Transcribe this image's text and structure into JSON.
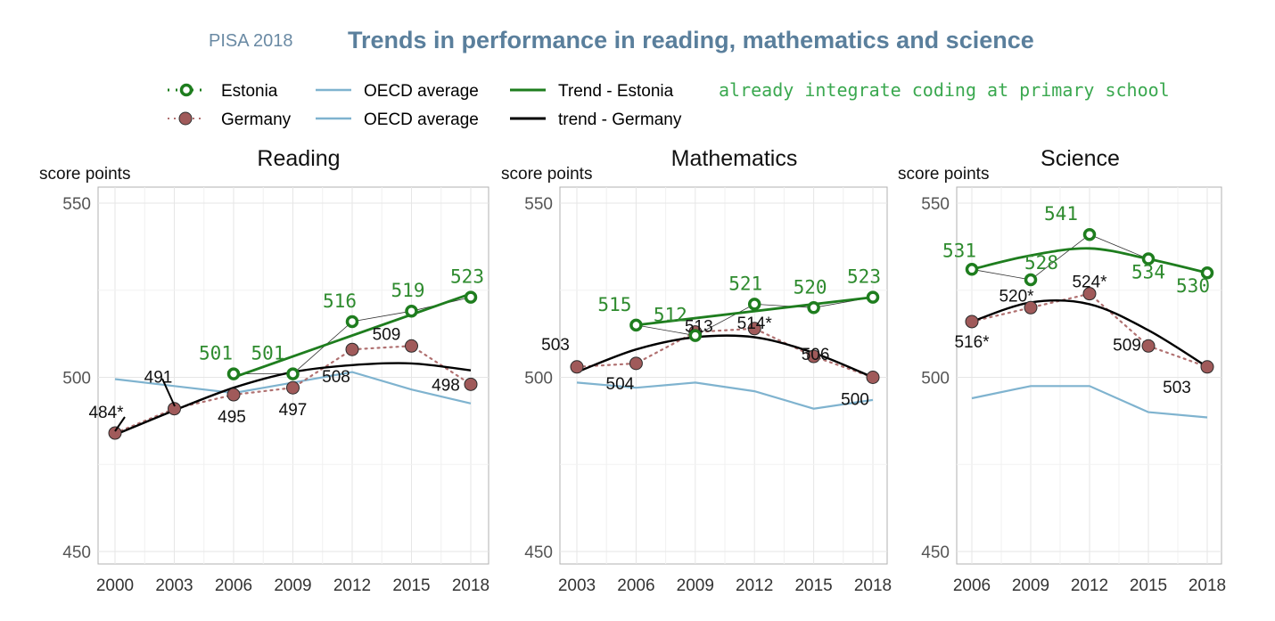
{
  "header": {
    "prefix": "PISA 2018",
    "title": "Trends in performance in reading, mathematics and science"
  },
  "legend": {
    "estonia": "Estonia",
    "germany": "Germany",
    "oecd_1": "OECD average",
    "oecd_2": "OECD average",
    "trend_estonia": "Trend - Estonia",
    "trend_germany": "trend - Germany",
    "note": "already integrate coding at primary school"
  },
  "colors": {
    "estonia": "#1e7d1e",
    "estonia_label": "#2e8b2e",
    "germany_fill": "#a05a5a",
    "germany_dots": "#b07070",
    "oecd": "#7fb3cf",
    "trend_germany": "#000000",
    "grid": "#e6e6e6",
    "axis_text": "#555555",
    "header_prefix": "#6a8aa4",
    "header_title": "#5a7f9c",
    "note": "#3aa84f"
  },
  "chart_data": [
    {
      "type": "line",
      "title": "Reading",
      "ylabel": "score points",
      "ylim": [
        450,
        550
      ],
      "yticks": [
        450,
        500,
        550
      ],
      "x": [
        2000,
        2003,
        2006,
        2009,
        2012,
        2015,
        2018
      ],
      "series": [
        {
          "name": "Estonia",
          "x": [
            2006,
            2009,
            2012,
            2015,
            2018
          ],
          "values": [
            501,
            501,
            516,
            519,
            523
          ],
          "labels": [
            "501",
            "501",
            "516",
            "519",
            "523"
          ]
        },
        {
          "name": "Germany",
          "x": [
            2000,
            2003,
            2006,
            2009,
            2012,
            2015,
            2018
          ],
          "values": [
            484,
            491,
            495,
            497,
            508,
            509,
            498
          ],
          "labels": [
            "484*",
            "491",
            "495",
            "497",
            "508",
            "509",
            "498"
          ]
        },
        {
          "name": "OECD average",
          "x": [
            2000,
            2003,
            2006,
            2009,
            2012,
            2015,
            2018
          ],
          "values": [
            499.5,
            497.5,
            495.5,
            498.5,
            501.5,
            496.5,
            492.5
          ]
        },
        {
          "name": "Trend - Estonia",
          "x": [
            2006,
            2018
          ],
          "values": [
            500,
            524
          ]
        },
        {
          "name": "trend - Germany",
          "x": [
            2000,
            2003,
            2006,
            2009,
            2012,
            2015,
            2018
          ],
          "values": [
            483.5,
            490.5,
            497,
            501.5,
            503.5,
            504,
            502
          ]
        }
      ]
    },
    {
      "type": "line",
      "title": "Mathematics",
      "ylabel": "score points",
      "ylim": [
        450,
        550
      ],
      "yticks": [
        450,
        500,
        550
      ],
      "x": [
        2003,
        2006,
        2009,
        2012,
        2015,
        2018
      ],
      "series": [
        {
          "name": "Estonia",
          "x": [
            2006,
            2009,
            2012,
            2015,
            2018
          ],
          "values": [
            515,
            512,
            521,
            520,
            523
          ],
          "labels": [
            "515",
            "512",
            "521",
            "520",
            "523"
          ]
        },
        {
          "name": "Germany",
          "x": [
            2003,
            2006,
            2009,
            2012,
            2015,
            2018
          ],
          "values": [
            503,
            504,
            513,
            514,
            506,
            500
          ],
          "labels": [
            "503",
            "504",
            "513",
            "514*",
            "506",
            "500"
          ]
        },
        {
          "name": "OECD average",
          "x": [
            2003,
            2006,
            2009,
            2012,
            2015,
            2018
          ],
          "values": [
            498.5,
            497,
            498.5,
            496,
            491,
            493.5
          ]
        },
        {
          "name": "Trend - Estonia",
          "x": [
            2006,
            2018
          ],
          "values": [
            515,
            523
          ]
        },
        {
          "name": "trend - Germany",
          "x": [
            2003,
            2006,
            2009,
            2012,
            2015,
            2018
          ],
          "values": [
            501.5,
            508,
            511.5,
            511.5,
            507,
            500
          ]
        }
      ]
    },
    {
      "type": "line",
      "title": "Science",
      "ylabel": "score points",
      "ylim": [
        450,
        550
      ],
      "yticks": [
        450,
        500,
        550
      ],
      "x": [
        2006,
        2009,
        2012,
        2015,
        2018
      ],
      "series": [
        {
          "name": "Estonia",
          "x": [
            2006,
            2009,
            2012,
            2015,
            2018
          ],
          "values": [
            531,
            528,
            541,
            534,
            530
          ],
          "labels": [
            "531",
            "528",
            "541",
            "534",
            "530"
          ]
        },
        {
          "name": "Germany",
          "x": [
            2006,
            2009,
            2012,
            2015,
            2018
          ],
          "values": [
            516,
            520,
            524,
            509,
            503
          ],
          "labels": [
            "516*",
            "520*",
            "524*",
            "509",
            "503"
          ]
        },
        {
          "name": "OECD average",
          "x": [
            2006,
            2009,
            2012,
            2015,
            2018
          ],
          "values": [
            494,
            497.5,
            497.5,
            490,
            488.5
          ]
        },
        {
          "name": "Trend - Estonia",
          "x": [
            2006,
            2009,
            2012,
            2015,
            2018
          ],
          "values": [
            531,
            535,
            537,
            534,
            530
          ]
        },
        {
          "name": "trend - Germany",
          "x": [
            2006,
            2009,
            2012,
            2015,
            2018
          ],
          "values": [
            516,
            521.5,
            521,
            513.5,
            503
          ]
        }
      ]
    }
  ]
}
